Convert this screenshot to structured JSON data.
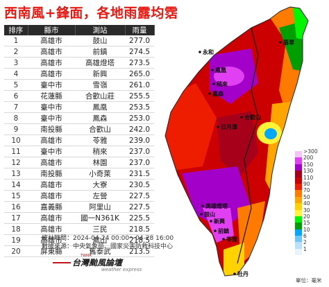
{
  "title": "西南風+鋒面，各地雨露均霑",
  "table": {
    "headers": [
      "排序",
      "縣市",
      "測站",
      "雨量"
    ],
    "rows": [
      {
        "rank": "1",
        "county": "高雄市",
        "station": "鼓山",
        "rain": "277.0"
      },
      {
        "rank": "2",
        "county": "高雄市",
        "station": "前鎮",
        "rain": "274.5"
      },
      {
        "rank": "3",
        "county": "高雄市",
        "station": "高雄燈塔",
        "rain": "273.5"
      },
      {
        "rank": "4",
        "county": "高雄市",
        "station": "新興",
        "rain": "265.0"
      },
      {
        "rank": "5",
        "county": "臺中市",
        "station": "雪嶺",
        "rain": "261.0"
      },
      {
        "rank": "6",
        "county": "花蓮縣",
        "station": "合歡山莊",
        "rain": "255.5"
      },
      {
        "rank": "7",
        "county": "臺中市",
        "station": "鳳凰",
        "rain": "253.5"
      },
      {
        "rank": "8",
        "county": "臺中市",
        "station": "鳳森",
        "rain": "253.0"
      },
      {
        "rank": "9",
        "county": "南投縣",
        "station": "合歡山",
        "rain": "242.0"
      },
      {
        "rank": "10",
        "county": "高雄市",
        "station": "苓雅",
        "rain": "239.0"
      },
      {
        "rank": "11",
        "county": "臺中市",
        "station": "稍來",
        "rain": "237.0"
      },
      {
        "rank": "12",
        "county": "高雄市",
        "station": "林園",
        "rain": "237.0"
      },
      {
        "rank": "13",
        "county": "南投縣",
        "station": "小奇萊",
        "rain": "231.5"
      },
      {
        "rank": "14",
        "county": "高雄市",
        "station": "大寮",
        "rain": "230.5"
      },
      {
        "rank": "15",
        "county": "高雄市",
        "station": "左營",
        "rain": "227.5"
      },
      {
        "rank": "16",
        "county": "嘉義縣",
        "station": "阿里山",
        "rain": "227.5"
      },
      {
        "rank": "17",
        "county": "高雄市",
        "station": "國一N361K",
        "rain": "225.5"
      },
      {
        "rank": "18",
        "county": "高雄市",
        "station": "三民",
        "rain": "218.5"
      },
      {
        "rank": "19",
        "county": "高雄市",
        "station": "鳳山",
        "rain": "218.5"
      },
      {
        "rank": "20",
        "county": "屏東縣",
        "station": "舊泰武",
        "rain": "213.5"
      }
    ]
  },
  "footer": {
    "time": "統計時間：2024-04-24 00:00～04-28 16:00",
    "source": "數據來源：中央氣象局、國家災害防救科技中心"
  },
  "logo": {
    "name": "台灣颱風論壇",
    "sub": "weather express",
    "small": "TWMA"
  },
  "map": {
    "places": [
      "翡翠",
      "永和",
      "鳳凰",
      "稍來",
      "鳳森",
      "日月潭",
      "合歡山",
      "高雄燈塔",
      "新興",
      "鼓山",
      "前鎮",
      "苓雅",
      "牡丹"
    ]
  },
  "legend": {
    "labels": [
      ">300",
      "200",
      "150",
      "130",
      "110",
      "90",
      "70",
      "50",
      "40",
      "30",
      "20",
      "15",
      "10",
      "6",
      "2",
      "1"
    ],
    "colors": [
      "#f4c4f7",
      "#e13ff2",
      "#a300c9",
      "#a6001b",
      "#cc0000",
      "#ef1d00",
      "#ff7b00",
      "#ffa500",
      "#ffd200",
      "#fff338",
      "#00f500",
      "#009e00",
      "#00a8ff",
      "#6ec7ff",
      "#b7e1ff",
      "#e8f3fb"
    ]
  },
  "unit": "單位：毫米",
  "chart_data": {
    "type": "table",
    "title": "西南風+鋒面，各地雨露均霑",
    "columns": [
      "排序",
      "縣市",
      "測站",
      "雨量"
    ],
    "categories": [
      "鼓山",
      "前鎮",
      "高雄燈塔",
      "新興",
      "雪嶺",
      "合歡山莊",
      "鳳凰",
      "鳳森",
      "合歡山",
      "苓雅",
      "稍來",
      "林園",
      "小奇萊",
      "大寮",
      "左營",
      "阿里山",
      "國一N361K",
      "三民",
      "鳳山",
      "舊泰武"
    ],
    "values": [
      277.0,
      274.5,
      273.5,
      265.0,
      261.0,
      255.5,
      253.5,
      253.0,
      242.0,
      239.0,
      237.0,
      237.0,
      231.5,
      230.5,
      227.5,
      227.5,
      225.5,
      218.5,
      218.5,
      213.5
    ],
    "legend_bins": [
      ">300",
      "200",
      "150",
      "130",
      "110",
      "90",
      "70",
      "50",
      "40",
      "30",
      "20",
      "15",
      "10",
      "6",
      "2",
      "1"
    ]
  }
}
